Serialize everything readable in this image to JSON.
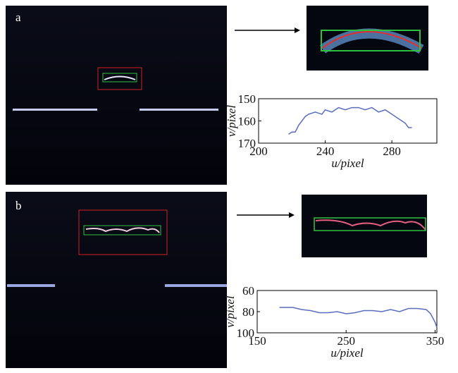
{
  "chart_data": [
    {
      "type": "line",
      "panel_label": "a",
      "x_label": "u/pixel",
      "y_label": "v/pixel",
      "xlim": [
        200,
        307
      ],
      "xticks": [
        200,
        240,
        280
      ],
      "ylim": [
        170,
        150
      ],
      "yticks": [
        150,
        160,
        170
      ],
      "series": [
        {
          "color": "#5a6cc0",
          "x": [
            218,
            220,
            222,
            224,
            226,
            228,
            230,
            234,
            238,
            240,
            244,
            248,
            252,
            256,
            260,
            264,
            268,
            272,
            276,
            280,
            284,
            288,
            290,
            292
          ],
          "values": [
            166,
            165,
            165,
            162,
            160,
            158,
            157,
            156,
            157,
            155,
            156,
            154,
            155,
            154,
            154,
            155,
            154,
            156,
            155,
            157,
            159,
            161,
            163,
            163
          ]
        }
      ]
    },
    {
      "type": "line",
      "panel_label": "b",
      "x_label": "u/pixel",
      "y_label": "v/pixel",
      "xlim": [
        150,
        352
      ],
      "xticks": [
        150,
        250,
        350
      ],
      "ylim": [
        100,
        60
      ],
      "yticks": [
        60,
        80,
        100
      ],
      "series": [
        {
          "color": "#5a6cc0",
          "x": [
            175,
            190,
            200,
            210,
            220,
            230,
            240,
            250,
            260,
            270,
            280,
            290,
            300,
            310,
            320,
            330,
            340,
            345,
            350,
            352
          ],
          "values": [
            76,
            76,
            78,
            79,
            81,
            81,
            80,
            82,
            81,
            79,
            79,
            80,
            78,
            80,
            77,
            77,
            78,
            82,
            90,
            95
          ]
        }
      ]
    }
  ]
}
